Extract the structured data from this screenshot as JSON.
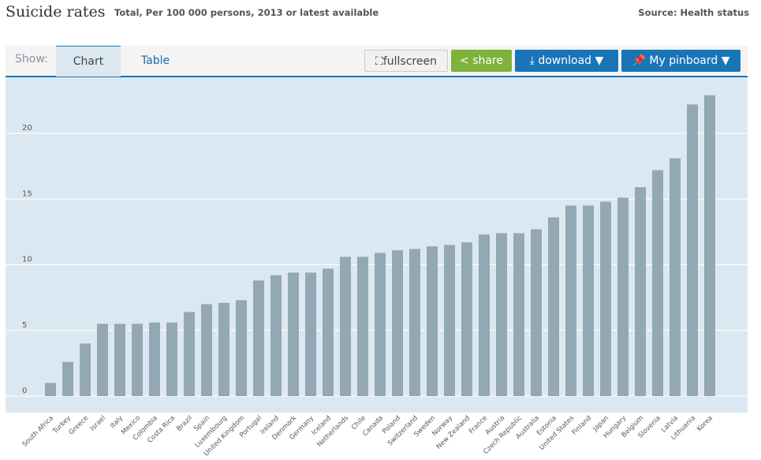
{
  "header": {
    "title": "Suicide rates",
    "subtitle": "Total, Per 100 000 persons, 2013 or latest available",
    "source": "Source: Health status"
  },
  "toolbar": {
    "show_label": "Show:",
    "tabs": [
      {
        "label": "Chart",
        "active": true
      },
      {
        "label": "Table",
        "active": false
      }
    ],
    "fullscreen": "fullscreen",
    "share": "share",
    "download": "download ▼",
    "pinboard": "My pinboard ▼"
  },
  "colors": {
    "bar": "#93a7b5",
    "plot_bg": "#dce8f1",
    "accent": "#1a74b8",
    "share": "#7db33a"
  },
  "chart_data": {
    "type": "bar",
    "title": "",
    "xlabel": "",
    "ylabel": "",
    "ylim": [
      0,
      23.5
    ],
    "grid": true,
    "yticks": [
      0,
      5,
      10,
      15,
      20
    ],
    "categories": [
      "South Africa",
      "Turkey",
      "Greece",
      "Israel",
      "Italy",
      "Mexico",
      "Colombia",
      "Costa Rica",
      "Brazil",
      "Spain",
      "Luxembourg",
      "United Kingdom",
      "Portugal",
      "Ireland",
      "Denmark",
      "Germany",
      "Iceland",
      "Netherlands",
      "Chile",
      "Canada",
      "Poland",
      "Switzerland",
      "Sweden",
      "Norway",
      "New Zealand",
      "France",
      "Austria",
      "Czech Republic",
      "Australia",
      "Estonia",
      "United States",
      "Finland",
      "Japan",
      "Hungary",
      "Belgium",
      "Slovenia",
      "Latvia",
      "Lithuania",
      "Korea"
    ],
    "values": [
      1.0,
      2.6,
      4.0,
      5.5,
      5.5,
      5.5,
      5.6,
      5.6,
      6.4,
      7.0,
      7.1,
      7.3,
      8.8,
      9.2,
      9.4,
      9.4,
      9.7,
      10.6,
      10.6,
      10.9,
      11.1,
      11.2,
      11.4,
      11.5,
      11.7,
      12.3,
      12.4,
      12.4,
      12.7,
      13.6,
      14.5,
      14.5,
      14.8,
      15.1,
      15.9,
      17.2,
      18.1,
      22.2,
      22.9
    ]
  }
}
